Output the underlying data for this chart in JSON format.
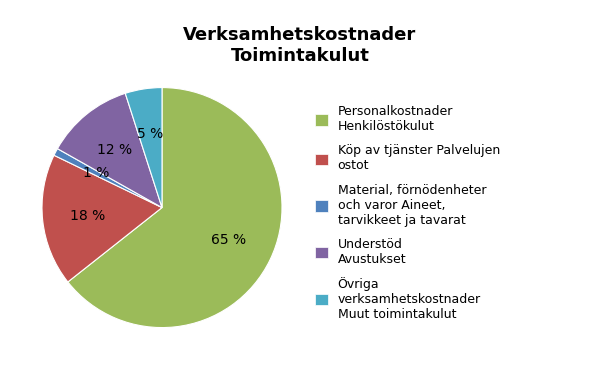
{
  "title": "Verksamhetskostnader\nToimintakulut",
  "slices": [
    65,
    18,
    1,
    12,
    5
  ],
  "colors": [
    "#9BBB59",
    "#C0504D",
    "#4F81BD",
    "#8064A2",
    "#4BACC6"
  ],
  "labels_on_pie": [
    "65 %",
    "18 %",
    "1 %",
    "12 %",
    "5 %"
  ],
  "label_radii": [
    0.62,
    0.62,
    0.62,
    0.62,
    0.62
  ],
  "legend_labels": [
    "Personalkostnader\nHenkilöstökulut",
    "Köp av tjänster Palvelujen\nostot",
    "Material, förnödenheter\noch varor Aineet,\ntarvikkeet ja tavarat",
    "Understöd\nAvustukset",
    "Övriga\nverksamhetskostnader\nMuut toimintakulut"
  ],
  "startangle": 90,
  "background_color": "#FFFFFF",
  "title_fontsize": 13,
  "label_fontsize": 10,
  "legend_fontsize": 9
}
